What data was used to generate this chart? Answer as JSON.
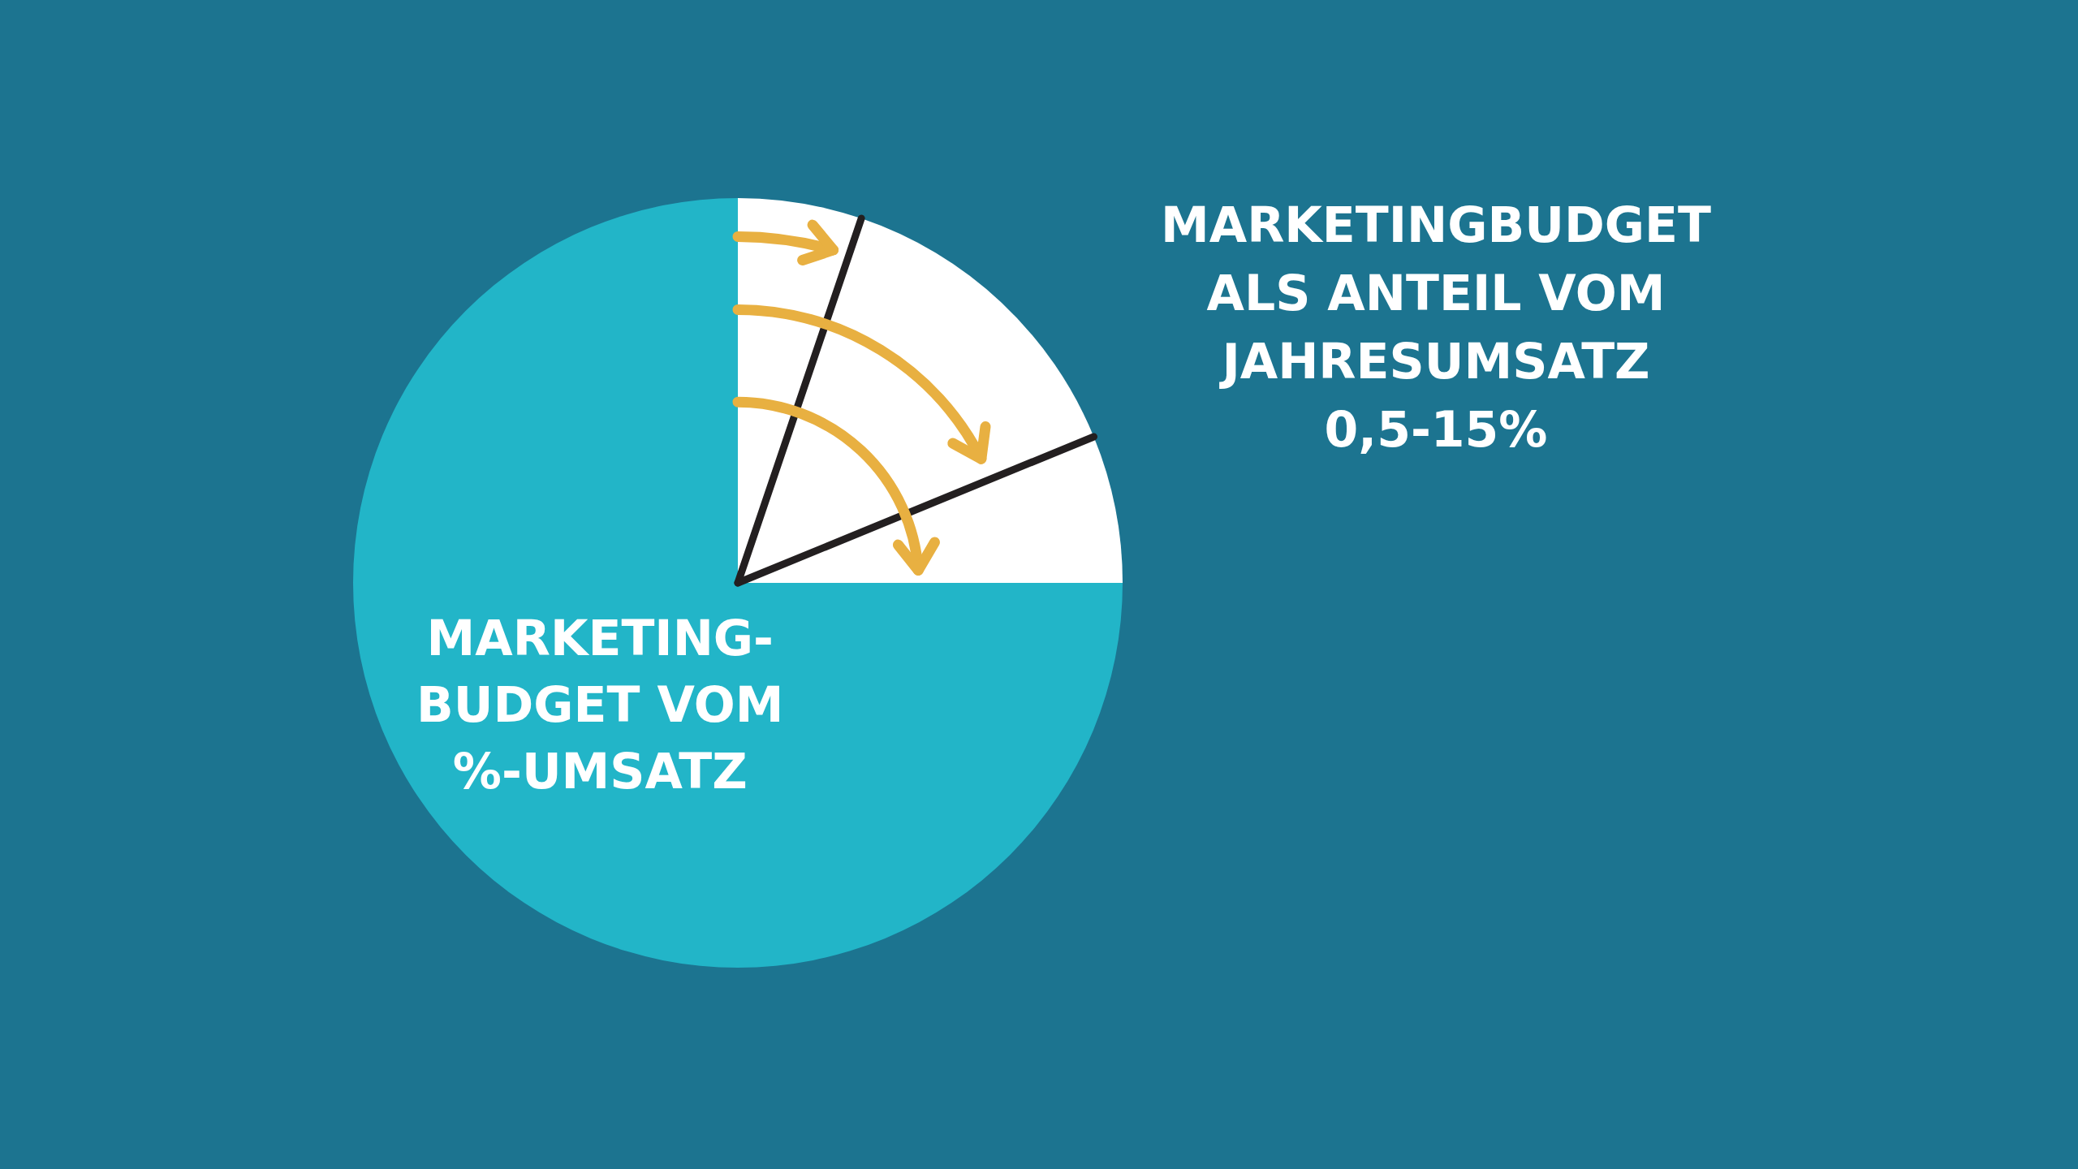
{
  "chart_data": {
    "type": "pie",
    "title": "MARKETINGBUDGET\nALS ANTEIL VOM\nJAHRESUMSATZ\n0,5-15%",
    "categories": [
      null,
      null,
      null,
      "MARKETING-\nBUDGET VOM\n%-UMSATZ"
    ],
    "values": [
      5.2,
      13.6,
      6.2,
      75
    ],
    "colors": [
      "#ffffff",
      "#ffffff",
      "#ffffff",
      "#22b5c8"
    ],
    "legend": false
  }
}
